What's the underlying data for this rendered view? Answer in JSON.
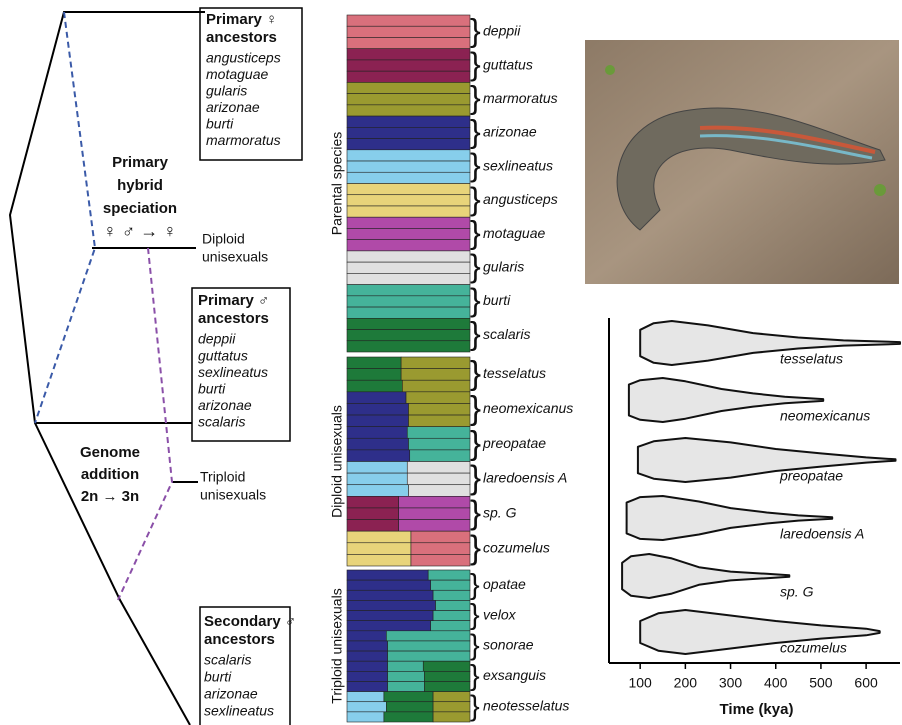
{
  "diagram": {
    "female_box": {
      "title": "Primary ♀",
      "subtitle": "ancestors",
      "items": [
        "angusticeps",
        "motaguae",
        "gularis",
        "arizonae",
        "burti",
        "marmoratus"
      ]
    },
    "hybrid": {
      "lines": [
        "Primary",
        "hybrid",
        "speciation"
      ],
      "formula": "♀ ♂ → ♀"
    },
    "diploid": [
      "Diploid",
      "unisexuals"
    ],
    "male_box": {
      "title": "Primary ♂",
      "subtitle": "ancestors",
      "items": [
        "deppii",
        "guttatus",
        "sexlineatus",
        "burti",
        "arizonae",
        "scalaris"
      ]
    },
    "addition": {
      "lines": [
        "Genome",
        "addition",
        "2n → 3n"
      ]
    },
    "triploid": [
      "Triploid",
      "unisexuals"
    ],
    "secondary_box": {
      "title": "Secondary ♂",
      "subtitle": "ancestors",
      "items": [
        "scalaris",
        "burti",
        "arizonae",
        "sexlineatus"
      ]
    }
  },
  "structure": {
    "groups": [
      {
        "label": "Parental species",
        "species": [
          {
            "name": "deppii",
            "colors": [
              "#d9707c"
            ],
            "rows": [
              [
                1
              ],
              [
                1
              ],
              [
                1
              ]
            ]
          },
          {
            "name": "guttatus",
            "colors": [
              "#8b2252"
            ],
            "rows": [
              [
                1
              ],
              [
                1
              ],
              [
                1
              ]
            ]
          },
          {
            "name": "marmoratus",
            "colors": [
              "#9a9a30"
            ],
            "rows": [
              [
                1
              ],
              [
                1
              ],
              [
                1
              ]
            ]
          },
          {
            "name": "arizonae",
            "colors": [
              "#2e2f8a"
            ],
            "rows": [
              [
                1
              ],
              [
                1
              ],
              [
                1
              ]
            ]
          },
          {
            "name": "sexlineatus",
            "colors": [
              "#87ceeb"
            ],
            "rows": [
              [
                1
              ],
              [
                1
              ],
              [
                1
              ]
            ]
          },
          {
            "name": "angusticeps",
            "colors": [
              "#e8d47a"
            ],
            "rows": [
              [
                1
              ],
              [
                1
              ],
              [
                1
              ]
            ]
          },
          {
            "name": "motaguae",
            "colors": [
              "#b04aa8"
            ],
            "rows": [
              [
                1
              ],
              [
                1
              ],
              [
                1
              ]
            ]
          },
          {
            "name": "gularis",
            "colors": [
              "#e0e0e0"
            ],
            "rows": [
              [
                1
              ],
              [
                1
              ],
              [
                1
              ]
            ]
          },
          {
            "name": "burti",
            "colors": [
              "#45b39a"
            ],
            "rows": [
              [
                1
              ],
              [
                1
              ],
              [
                1
              ]
            ]
          },
          {
            "name": "scalaris",
            "colors": [
              "#1e7a3a"
            ],
            "rows": [
              [
                1
              ],
              [
                1
              ],
              [
                1
              ]
            ]
          }
        ]
      },
      {
        "label": "Diploid unisexuals",
        "species": [
          {
            "name": "tesselatus",
            "colors": [
              "#1e7a3a",
              "#9a9a30"
            ],
            "rows": [
              [
                0.44,
                0.56
              ],
              [
                0.44,
                0.56
              ],
              [
                0.45,
                0.55
              ]
            ]
          },
          {
            "name": "neomexicanus",
            "colors": [
              "#2e2f8a",
              "#9a9a30"
            ],
            "rows": [
              [
                0.48,
                0.52
              ],
              [
                0.5,
                0.5
              ],
              [
                0.5,
                0.5
              ]
            ]
          },
          {
            "name": "preopatae",
            "colors": [
              "#2e2f8a",
              "#45b39a"
            ],
            "rows": [
              [
                0.49,
                0.51
              ],
              [
                0.5,
                0.5
              ],
              [
                0.51,
                0.49
              ]
            ]
          },
          {
            "name": "laredoensis A",
            "colors": [
              "#87ceeb",
              "#e0e0e0"
            ],
            "rows": [
              [
                0.49,
                0.51
              ],
              [
                0.49,
                0.51
              ],
              [
                0.5,
                0.5
              ]
            ]
          },
          {
            "name": "sp. G",
            "colors": [
              "#8b2252",
              "#b04aa8"
            ],
            "rows": [
              [
                0.42,
                0.58
              ],
              [
                0.42,
                0.58
              ],
              [
                0.42,
                0.58
              ]
            ]
          },
          {
            "name": "cozumelus",
            "colors": [
              "#e8d47a",
              "#d9707c"
            ],
            "rows": [
              [
                0.52,
                0.48
              ],
              [
                0.52,
                0.48
              ],
              [
                0.52,
                0.48
              ]
            ]
          }
        ]
      },
      {
        "label": "Triploid unisexuals",
        "species": [
          {
            "name": "opatae",
            "colors": [
              "#2e2f8a",
              "#45b39a"
            ],
            "rows": [
              [
                0.66,
                0.34
              ],
              [
                0.68,
                0.32
              ],
              [
                0.7,
                0.3
              ]
            ]
          },
          {
            "name": "velox",
            "colors": [
              "#2e2f8a",
              "#45b39a"
            ],
            "rows": [
              [
                0.72,
                0.28
              ],
              [
                0.7,
                0.3
              ],
              [
                0.68,
                0.32
              ]
            ]
          },
          {
            "name": "sonorae",
            "colors": [
              "#2e2f8a",
              "#45b39a"
            ],
            "rows": [
              [
                0.32,
                0.68
              ],
              [
                0.33,
                0.67
              ],
              [
                0.33,
                0.67
              ]
            ]
          },
          {
            "name": "exsanguis",
            "colors": [
              "#2e2f8a",
              "#45b39a",
              "#1e7a3a"
            ],
            "rows": [
              [
                0.33,
                0.29,
                0.38
              ],
              [
                0.33,
                0.3,
                0.37
              ],
              [
                0.33,
                0.3,
                0.37
              ]
            ]
          },
          {
            "name": "neotesselatus",
            "colors": [
              "#87ceeb",
              "#1e7a3a",
              "#9a9a30"
            ],
            "rows": [
              [
                0.3,
                0.4,
                0.3
              ],
              [
                0.32,
                0.38,
                0.3
              ],
              [
                0.3,
                0.4,
                0.3
              ]
            ]
          }
        ]
      }
    ]
  },
  "chart_data": {
    "type": "violin",
    "xlabel": "Time (kya)",
    "xlim": [
      31,
      675
    ],
    "xticks": [
      100,
      200,
      300,
      400,
      500,
      600
    ],
    "color": "#e6e6e6",
    "series": [
      {
        "name": "tesselatus",
        "x": [
          100,
          130,
          170,
          250,
          350,
          450,
          550,
          675
        ],
        "density": [
          0.6,
          0.9,
          1.0,
          0.8,
          0.45,
          0.25,
          0.12,
          0.04
        ]
      },
      {
        "name": "neomexicanus",
        "x": [
          75,
          100,
          150,
          200,
          280,
          350,
          420,
          505
        ],
        "density": [
          0.7,
          0.9,
          1.0,
          0.85,
          0.5,
          0.3,
          0.15,
          0.04
        ]
      },
      {
        "name": "preopatae",
        "x": [
          95,
          130,
          200,
          300,
          400,
          500,
          600,
          665
        ],
        "density": [
          0.6,
          0.85,
          1.0,
          0.8,
          0.5,
          0.3,
          0.12,
          0.03
        ]
      },
      {
        "name": "laredoensis A",
        "x": [
          70,
          100,
          150,
          230,
          300,
          380,
          450,
          525
        ],
        "density": [
          0.7,
          0.95,
          1.0,
          0.75,
          0.45,
          0.25,
          0.12,
          0.03
        ]
      },
      {
        "name": "sp. G",
        "x": [
          60,
          80,
          120,
          170,
          230,
          300,
          380,
          430
        ],
        "density": [
          0.6,
          0.9,
          1.0,
          0.8,
          0.4,
          0.2,
          0.1,
          0.03
        ]
      },
      {
        "name": "cozumelus",
        "x": [
          100,
          140,
          200,
          300,
          400,
          500,
          600,
          630
        ],
        "density": [
          0.5,
          0.85,
          1.0,
          0.75,
          0.5,
          0.3,
          0.15,
          0.04
        ]
      }
    ]
  }
}
